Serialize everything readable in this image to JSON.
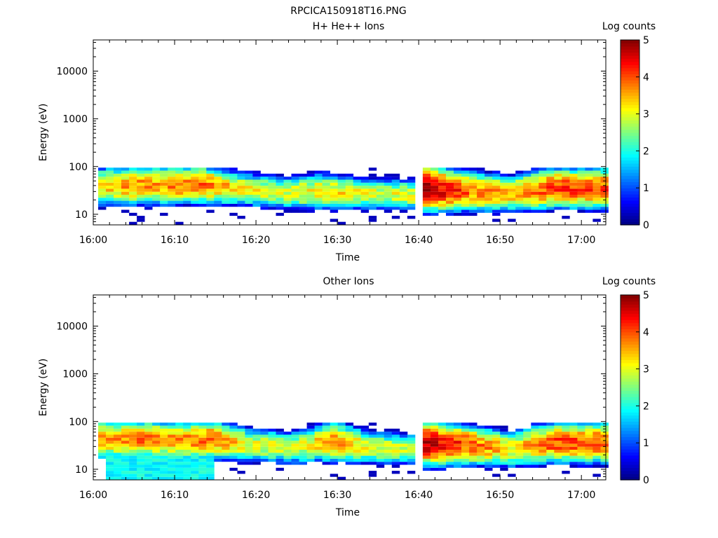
{
  "figure": {
    "title": "RPCICA150918T16.PNG"
  },
  "chart_data": [
    {
      "type": "heatmap",
      "title": "H+ He++ Ions",
      "xlabel": "Time",
      "ylabel": "Energy (eV)",
      "yscale": "log",
      "ylim": [
        6,
        45000
      ],
      "xlim_minutes": [
        0,
        63
      ],
      "x_ticks": [
        "16:00",
        "16:10",
        "16:20",
        "16:30",
        "16:40",
        "16:50",
        "17:00"
      ],
      "y_ticks": [
        "10",
        "100",
        "1000",
        "10000"
      ],
      "colorbar": {
        "label": "Log counts",
        "min": 0,
        "max": 5,
        "ticks": [
          "0",
          "1",
          "2",
          "3",
          "4",
          "5"
        ]
      },
      "time_start": "16:00",
      "data_gap": [
        "16:39",
        "16:40"
      ],
      "profiles": [
        {
          "t": 0,
          "peak": 3.3,
          "center": 38,
          "width": 0.62
        },
        {
          "t": 5,
          "peak": 3.6,
          "center": 40,
          "width": 0.62
        },
        {
          "t": 9,
          "peak": 3.7,
          "center": 40,
          "width": 0.6
        },
        {
          "t": 13,
          "peak": 3.9,
          "center": 42,
          "width": 0.58
        },
        {
          "t": 18,
          "peak": 3.1,
          "center": 33,
          "width": 0.55
        },
        {
          "t": 23,
          "peak": 2.9,
          "center": 28,
          "width": 0.55
        },
        {
          "t": 28,
          "peak": 3.3,
          "center": 30,
          "width": 0.58
        },
        {
          "t": 33,
          "peak": 3.0,
          "center": 27,
          "width": 0.52
        },
        {
          "t": 39,
          "peak": 3.0,
          "center": 25,
          "width": 0.5
        },
        {
          "t": 40,
          "peak": 5.0,
          "center": 35,
          "width": 0.65
        },
        {
          "t": 46,
          "peak": 3.8,
          "center": 30,
          "width": 0.62
        },
        {
          "t": 51,
          "peak": 3.4,
          "center": 27,
          "width": 0.58
        },
        {
          "t": 56,
          "peak": 4.1,
          "center": 35,
          "width": 0.62
        },
        {
          "t": 63,
          "peak": 4.0,
          "center": 35,
          "width": 0.62
        }
      ]
    },
    {
      "type": "heatmap",
      "title": "Other Ions",
      "xlabel": "Time",
      "ylabel": "Energy (eV)",
      "yscale": "log",
      "ylim": [
        6,
        45000
      ],
      "xlim_minutes": [
        0,
        63
      ],
      "x_ticks": [
        "16:00",
        "16:10",
        "16:20",
        "16:30",
        "16:40",
        "16:50",
        "17:00"
      ],
      "y_ticks": [
        "10",
        "100",
        "1000",
        "10000"
      ],
      "colorbar": {
        "label": "Log counts",
        "min": 0,
        "max": 5,
        "ticks": [
          "0",
          "1",
          "2",
          "3",
          "4",
          "5"
        ]
      },
      "time_start": "16:00",
      "data_gap": [
        "16:39",
        "16:40"
      ],
      "low_energy_band": {
        "t_start": 1,
        "t_end": 14.5,
        "level": 1.9,
        "energy_range": [
          6,
          20
        ]
      },
      "profiles": [
        {
          "t": 0,
          "peak": 3.6,
          "center": 42,
          "width": 0.6
        },
        {
          "t": 5,
          "peak": 3.8,
          "center": 42,
          "width": 0.6
        },
        {
          "t": 10,
          "peak": 3.6,
          "center": 40,
          "width": 0.6
        },
        {
          "t": 14,
          "peak": 3.9,
          "center": 42,
          "width": 0.6
        },
        {
          "t": 19,
          "peak": 3.0,
          "center": 32,
          "width": 0.55
        },
        {
          "t": 24,
          "peak": 2.8,
          "center": 28,
          "width": 0.55
        },
        {
          "t": 29,
          "peak": 3.7,
          "center": 38,
          "width": 0.62
        },
        {
          "t": 34,
          "peak": 3.0,
          "center": 28,
          "width": 0.55
        },
        {
          "t": 39,
          "peak": 2.9,
          "center": 26,
          "width": 0.5
        },
        {
          "t": 40,
          "peak": 4.8,
          "center": 35,
          "width": 0.65
        },
        {
          "t": 46,
          "peak": 3.9,
          "center": 32,
          "width": 0.62
        },
        {
          "t": 51,
          "peak": 3.2,
          "center": 26,
          "width": 0.58
        },
        {
          "t": 56,
          "peak": 4.0,
          "center": 36,
          "width": 0.62
        },
        {
          "t": 63,
          "peak": 4.0,
          "center": 36,
          "width": 0.62
        }
      ]
    }
  ]
}
